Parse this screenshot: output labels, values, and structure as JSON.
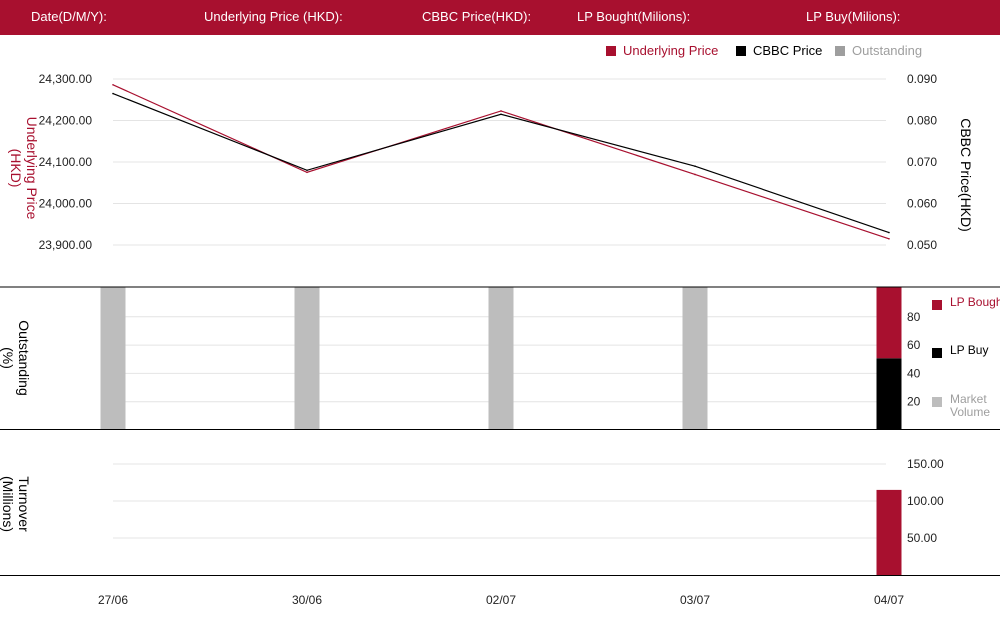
{
  "header": {
    "date_label": "Date(D/M/Y):",
    "underlying_label": "Underlying Price (HKD):",
    "cbbc_label": "CBBC Price(HKD):",
    "lp_bought_label": "LP Bought(Milions):",
    "lp_buy_label": "LP Buy(Milions):"
  },
  "colors": {
    "brand": "#a8102f",
    "cbbc": "#000000",
    "outstanding": "#bdbdbd",
    "grid": "#e4e4e4"
  },
  "legend_top": {
    "underlying": "Underlying Price",
    "cbbc": "CBBC Price",
    "outstanding": "Outstanding"
  },
  "legend_side": {
    "lp_bought": "LP Bought",
    "lp_buy": "LP Buy",
    "market_volume": "Market Volume"
  },
  "chart_data": [
    {
      "type": "line",
      "x": [
        "27/06",
        "30/06",
        "02/07",
        "03/07",
        "04/07"
      ],
      "series": [
        {
          "name": "Underlying Price",
          "axis": "left",
          "values": [
            24286,
            24075,
            24223,
            24070,
            23915
          ]
        },
        {
          "name": "CBBC Price",
          "axis": "right",
          "values": [
            0.0865,
            0.068,
            0.0815,
            0.069,
            0.053
          ]
        }
      ],
      "ylabel_left": "Underlying Price (HKD)",
      "ylabel_right": "CBBC Price(HKD)",
      "ylim_left": [
        23850,
        24350
      ],
      "ylim_right": [
        0.045,
        0.095
      ],
      "yticks_left": [
        "24,300.00",
        "24,200.00",
        "24,100.00",
        "24,000.00",
        "23,900.00"
      ],
      "ytick_values_left": [
        24300,
        24200,
        24100,
        24000,
        23900
      ],
      "yticks_right": [
        "0.090",
        "0.080",
        "0.070",
        "0.060",
        "0.050"
      ],
      "ytick_values_right": [
        0.09,
        0.08,
        0.07,
        0.06,
        0.05
      ],
      "legend": "top-right",
      "grid": true
    },
    {
      "type": "bar",
      "categories": [
        "27/06",
        "30/06",
        "02/07",
        "03/07",
        "04/07"
      ],
      "series": [
        {
          "name": "Market Volume",
          "values": [
            100,
            100,
            100,
            100,
            0
          ]
        },
        {
          "name": "LP Buy",
          "values": [
            0,
            0,
            0,
            0,
            50
          ]
        },
        {
          "name": "LP Bought",
          "values": [
            0,
            0,
            0,
            0,
            50
          ]
        }
      ],
      "ylabel": "Outstanding (%)",
      "ylim": [
        0,
        100
      ],
      "yticks": [
        "80",
        "60",
        "40",
        "20"
      ],
      "ytick_values": [
        80,
        60,
        40,
        20
      ],
      "legend": "right",
      "grid": true
    },
    {
      "type": "bar",
      "categories": [
        "27/06",
        "30/06",
        "02/07",
        "03/07",
        "04/07"
      ],
      "series": [
        {
          "name": "Turnover",
          "values": [
            0,
            0,
            0,
            0,
            115
          ]
        }
      ],
      "ylabel": "Turnover (Millions)",
      "ylim": [
        0,
        200
      ],
      "yticks": [
        "150.00",
        "100.00",
        "50.00"
      ],
      "ytick_values": [
        150,
        100,
        50
      ],
      "grid": true
    }
  ]
}
